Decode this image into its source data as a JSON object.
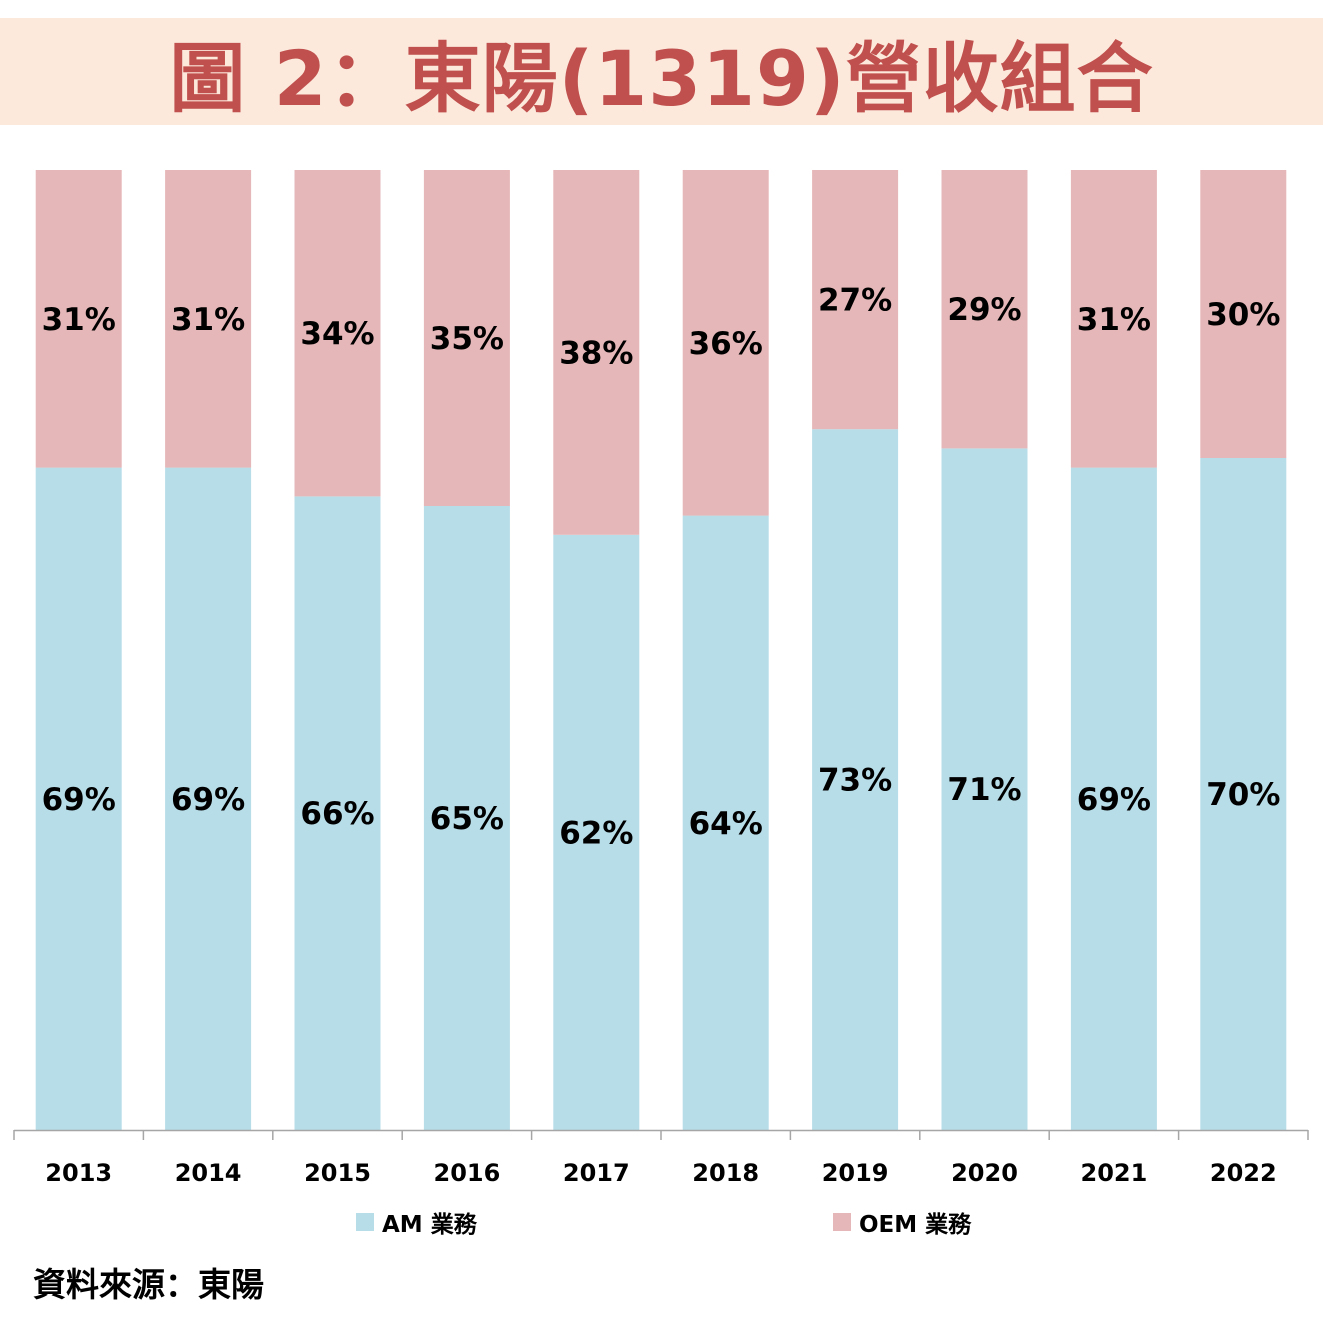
{
  "title": "圖 2：東陽(1319)營收組合",
  "source": "資料來源：東陽",
  "colors": {
    "title_text": "#c0504d",
    "title_background": "#fce9dc",
    "am": "#b7dde8",
    "oem": "#e6b7b8",
    "axis": "#a6a6a6"
  },
  "chart_data": {
    "type": "bar",
    "stacked": true,
    "percent_stacked": true,
    "categories": [
      "2013",
      "2014",
      "2015",
      "2016",
      "2017",
      "2018",
      "2019",
      "2020",
      "2021",
      "2022"
    ],
    "series": [
      {
        "name": "AM 業務",
        "values": [
          69,
          69,
          66,
          65,
          62,
          64,
          73,
          71,
          69,
          70
        ],
        "labels": [
          "69%",
          "69%",
          "66%",
          "65%",
          "62%",
          "64%",
          "73%",
          "71%",
          "69%",
          "70%"
        ]
      },
      {
        "name": "OEM 業務",
        "values": [
          31,
          31,
          34,
          35,
          38,
          36,
          27,
          29,
          31,
          30
        ],
        "labels": [
          "31%",
          "31%",
          "34%",
          "35%",
          "38%",
          "36%",
          "27%",
          "29%",
          "31%",
          "30%"
        ]
      }
    ],
    "ylim": [
      0,
      100
    ],
    "grid": false,
    "legend_position": "bottom"
  }
}
